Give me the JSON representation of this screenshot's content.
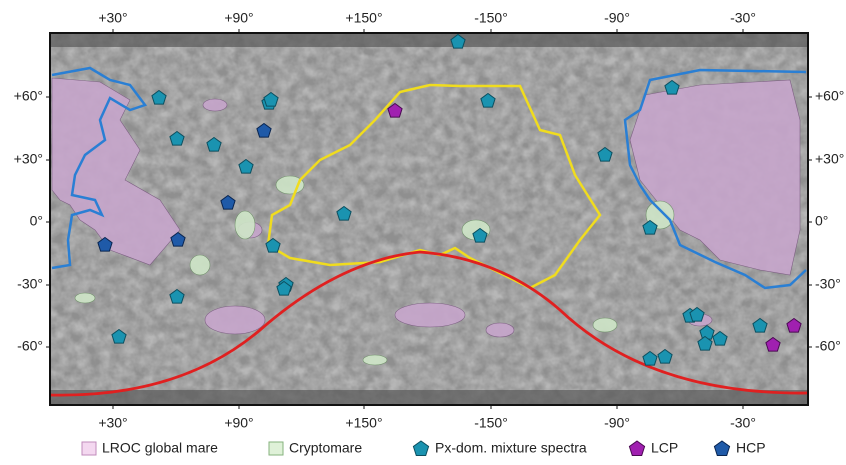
{
  "map": {
    "top_labels": [
      "+30°",
      "+90°",
      "+150°",
      "-150°",
      "-90°",
      "-30°"
    ],
    "bottom_labels": [
      "+30°",
      "+90°",
      "+150°",
      "-150°",
      "-90°",
      "-30°"
    ],
    "left_labels": [
      "+60°",
      "+30°",
      "0°",
      "-30°",
      "-60°"
    ],
    "right_labels": [
      "+60°",
      "+30°",
      "0°",
      "-30°",
      "-60°"
    ]
  },
  "legend": [
    "LROC global mare",
    "Cryptomare",
    "Px-dom. mixture spectra",
    "LCP",
    "HCP"
  ]
}
